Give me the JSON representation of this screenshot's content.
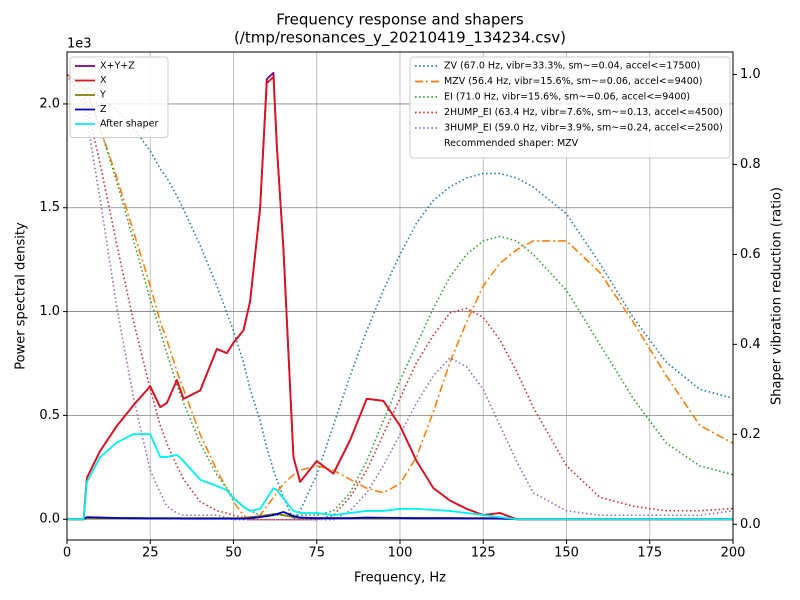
{
  "chart_data": {
    "type": "line",
    "title": "Frequency response and shapers",
    "subtitle": "(/tmp/resonances_y_20210419_134234.csv)",
    "x_label": "Frequency, Hz",
    "y_label": "Power spectral density",
    "y2_label": "Shaper vibration reduction (ratio)",
    "y_offset_label": "1e3",
    "grid": true,
    "xlim": [
      0,
      200
    ],
    "xticks": [
      0,
      25,
      50,
      75,
      100,
      125,
      150,
      175,
      200
    ],
    "ylim": [
      -0.1,
      2.25
    ],
    "yticks": [
      {
        "value": 0,
        "label": "0.0"
      },
      {
        "value": 0.5,
        "label": "0.5"
      },
      {
        "value": 1,
        "label": "1.0"
      },
      {
        "value": 1.5,
        "label": "1.5"
      },
      {
        "value": 2,
        "label": "2.0"
      }
    ],
    "y2lim": [
      -0.035,
      1.05
    ],
    "y2ticks": [
      {
        "value": 0,
        "label": "0.0"
      },
      {
        "value": 0.2,
        "label": "0.2"
      },
      {
        "value": 0.4,
        "label": "0.4"
      },
      {
        "value": 0.6,
        "label": "0.6"
      },
      {
        "value": 0.8,
        "label": "0.8"
      },
      {
        "value": 1,
        "label": "1.0"
      }
    ],
    "legend": "upper left",
    "legend2": "upper right",
    "legend2_note": "Recommended shaper: MZV",
    "x": [
      0,
      5,
      6,
      10,
      15,
      20,
      25,
      28,
      30,
      33,
      35,
      40,
      45,
      48,
      50,
      53,
      55,
      58,
      60,
      62,
      63,
      65,
      68,
      70,
      75,
      80,
      85,
      90,
      95,
      100,
      105,
      110,
      115,
      120,
      125,
      130,
      135,
      140,
      150,
      160,
      170,
      180,
      190,
      200
    ],
    "series": [
      {
        "name": "X+Y+Z",
        "color": "#800080",
        "dash": "solid",
        "axis": "y",
        "values": [
          0,
          0,
          0.2,
          0.33,
          0.45,
          0.55,
          0.64,
          0.54,
          0.56,
          0.67,
          0.58,
          0.62,
          0.82,
          0.8,
          0.85,
          0.91,
          1.05,
          1.5,
          2.12,
          2.15,
          1.8,
          1.3,
          0.3,
          0.18,
          0.28,
          0.22,
          0.38,
          0.58,
          0.57,
          0.45,
          0.28,
          0.15,
          0.09,
          0.05,
          0.02,
          0.03,
          0,
          0,
          0,
          0,
          0,
          0,
          0,
          0
        ]
      },
      {
        "name": "X",
        "color": "#e0101a",
        "dash": "solid",
        "axis": "y",
        "values": [
          0,
          0,
          0.2,
          0.33,
          0.45,
          0.55,
          0.64,
          0.54,
          0.56,
          0.67,
          0.58,
          0.62,
          0.82,
          0.8,
          0.85,
          0.91,
          1.05,
          1.5,
          2.1,
          2.13,
          1.8,
          1.3,
          0.3,
          0.18,
          0.28,
          0.22,
          0.38,
          0.58,
          0.57,
          0.45,
          0.28,
          0.15,
          0.09,
          0.05,
          0.02,
          0.03,
          0,
          0,
          0,
          0,
          0,
          0,
          0,
          0
        ]
      },
      {
        "name": "Y",
        "color": "#808000",
        "dash": "solid",
        "axis": "y",
        "values": [
          0,
          0,
          0.005,
          0.005,
          0.005,
          0.005,
          0.005,
          0.005,
          0.005,
          0.005,
          0.005,
          0.005,
          0.005,
          0.005,
          0.005,
          0.005,
          0.01,
          0.015,
          0.02,
          0.025,
          0.025,
          0.02,
          0.01,
          0.005,
          0.005,
          0.005,
          0.005,
          0.005,
          0.005,
          0.005,
          0.005,
          0.005,
          0.005,
          0.005,
          0.005,
          0.005,
          0,
          0,
          0,
          0,
          0,
          0,
          0,
          0
        ]
      },
      {
        "name": "Z",
        "color": "#0000c0",
        "dash": "solid",
        "axis": "y",
        "values": [
          0,
          0,
          0.01,
          0.008,
          0.006,
          0.005,
          0.004,
          0.004,
          0.004,
          0.004,
          0.003,
          0.003,
          0.003,
          0.003,
          0.003,
          0.003,
          0.005,
          0.01,
          0.015,
          0.02,
          0.025,
          0.035,
          0.015,
          0.008,
          0.005,
          0.005,
          0.005,
          0.008,
          0.007,
          0.006,
          0.005,
          0.005,
          0.005,
          0.004,
          0.004,
          0.003,
          0,
          0,
          0,
          0,
          0,
          0,
          0,
          0
        ]
      },
      {
        "name": "After shaper",
        "color": "#00f0f0",
        "dash": "solid",
        "axis": "y",
        "values": [
          0,
          0,
          0.18,
          0.3,
          0.37,
          0.41,
          0.41,
          0.3,
          0.3,
          0.31,
          0.28,
          0.19,
          0.16,
          0.14,
          0.1,
          0.06,
          0.04,
          0.05,
          0.1,
          0.15,
          0.14,
          0.1,
          0.04,
          0.03,
          0.03,
          0.02,
          0.03,
          0.04,
          0.04,
          0.05,
          0.05,
          0.045,
          0.04,
          0.03,
          0.02,
          0.01,
          0,
          0,
          0,
          0,
          0,
          0,
          0,
          0
        ]
      },
      {
        "name": "ZV (67.0 Hz, vibr=33.3%, sm~=0.04, accel<=17500)",
        "color": "#1f77b4",
        "dash": "dotted",
        "axis": "y2",
        "values": [
          1.0,
          0.98,
          0.97,
          0.95,
          0.92,
          0.88,
          0.83,
          0.79,
          0.77,
          0.73,
          0.7,
          0.62,
          0.53,
          0.47,
          0.43,
          0.36,
          0.3,
          0.23,
          0.17,
          0.12,
          0.1,
          0.06,
          0.01,
          0.03,
          0.11,
          0.22,
          0.33,
          0.43,
          0.52,
          0.6,
          0.67,
          0.72,
          0.75,
          0.77,
          0.78,
          0.78,
          0.77,
          0.75,
          0.69,
          0.58,
          0.46,
          0.36,
          0.3,
          0.28
        ]
      },
      {
        "name": "MZV (56.4 Hz, vibr=15.6%, sm~=0.06, accel<=9400)",
        "color": "#ff7f0e",
        "dash": "dashdot",
        "axis": "y2",
        "values": [
          1.0,
          0.97,
          0.96,
          0.88,
          0.77,
          0.65,
          0.53,
          0.45,
          0.41,
          0.34,
          0.3,
          0.2,
          0.12,
          0.08,
          0.05,
          0.02,
          0.01,
          0.02,
          0.04,
          0.06,
          0.07,
          0.09,
          0.11,
          0.12,
          0.13,
          0.12,
          0.1,
          0.08,
          0.07,
          0.09,
          0.15,
          0.25,
          0.36,
          0.45,
          0.53,
          0.58,
          0.61,
          0.63,
          0.63,
          0.56,
          0.45,
          0.33,
          0.22,
          0.18
        ]
      },
      {
        "name": "EI (71.0 Hz, vibr=15.6%, sm~=0.06, accel<=9400)",
        "color": "#2ca02c",
        "dash": "dotted",
        "axis": "y2",
        "values": [
          1.0,
          0.97,
          0.96,
          0.88,
          0.76,
          0.63,
          0.5,
          0.43,
          0.38,
          0.31,
          0.27,
          0.18,
          0.11,
          0.08,
          0.06,
          0.04,
          0.03,
          0.02,
          0.02,
          0.02,
          0.02,
          0.02,
          0.02,
          0.02,
          0.02,
          0.03,
          0.07,
          0.14,
          0.23,
          0.32,
          0.4,
          0.48,
          0.55,
          0.6,
          0.63,
          0.64,
          0.63,
          0.6,
          0.52,
          0.4,
          0.28,
          0.18,
          0.13,
          0.11
        ]
      },
      {
        "name": "2HUMP_EI (63.4 Hz, vibr=7.6%, sm~=0.13, accel<=4500)",
        "color": "#d62728",
        "dash": "dotted",
        "axis": "y2",
        "values": [
          1.0,
          0.95,
          0.93,
          0.8,
          0.62,
          0.45,
          0.3,
          0.22,
          0.18,
          0.13,
          0.1,
          0.05,
          0.03,
          0.025,
          0.02,
          0.015,
          0.01,
          0.01,
          0.01,
          0.01,
          0.01,
          0.01,
          0.01,
          0.01,
          0.01,
          0.02,
          0.06,
          0.12,
          0.2,
          0.28,
          0.36,
          0.42,
          0.47,
          0.48,
          0.46,
          0.41,
          0.34,
          0.26,
          0.13,
          0.06,
          0.04,
          0.03,
          0.03,
          0.035
        ]
      },
      {
        "name": "3HUMP_EI (59.0 Hz, vibr=3.9%, sm~=0.24, accel<=2500)",
        "color": "#9467bd",
        "dash": "dotted",
        "axis": "y2",
        "values": [
          1.0,
          0.93,
          0.9,
          0.72,
          0.48,
          0.28,
          0.12,
          0.07,
          0.04,
          0.025,
          0.02,
          0.02,
          0.02,
          0.015,
          0.01,
          0.01,
          0.01,
          0.01,
          0.01,
          0.01,
          0.01,
          0.01,
          0.01,
          0.01,
          0.01,
          0.01,
          0.03,
          0.07,
          0.13,
          0.2,
          0.27,
          0.33,
          0.37,
          0.35,
          0.3,
          0.22,
          0.14,
          0.07,
          0.03,
          0.02,
          0.02,
          0.02,
          0.02,
          0.03
        ]
      }
    ]
  }
}
